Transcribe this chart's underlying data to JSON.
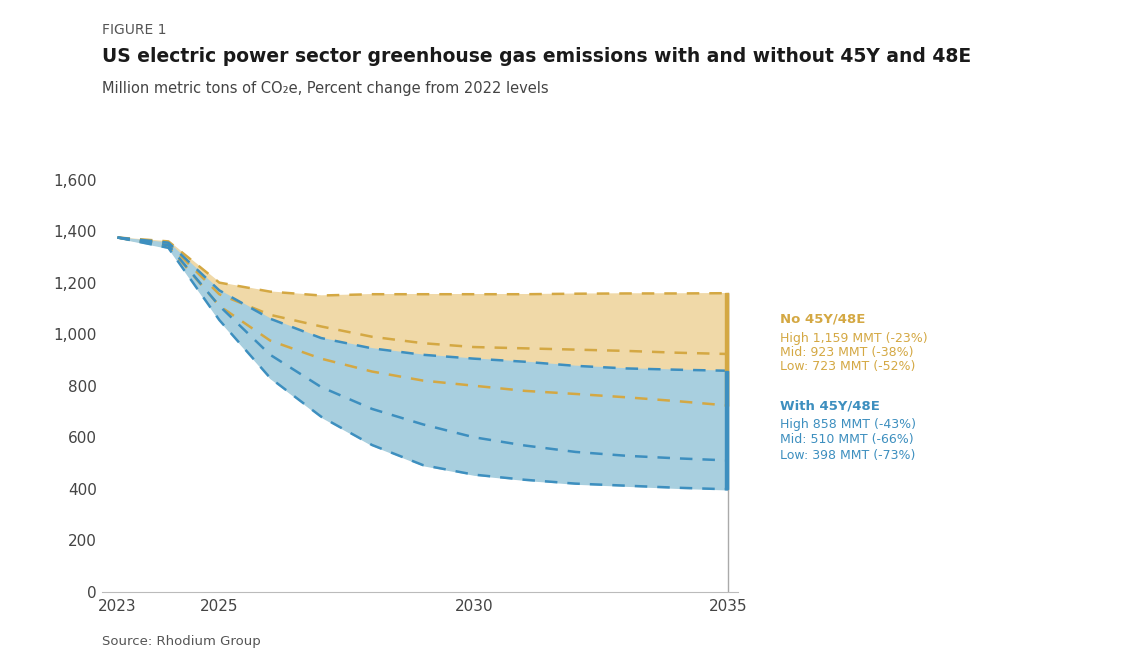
{
  "figure_label": "FIGURE 1",
  "title": "US electric power sector greenhouse gas emissions with and without 45Y and 48E",
  "subtitle": "Million metric tons of CO₂e, Percent change from 2022 levels",
  "source": "Source: Rhodium Group",
  "years": [
    2023,
    2024,
    2025,
    2026,
    2027,
    2028,
    2029,
    2030,
    2031,
    2032,
    2033,
    2034,
    2035
  ],
  "no_45y_high": [
    1375,
    1360,
    1200,
    1165,
    1150,
    1155,
    1155,
    1155,
    1155,
    1157,
    1158,
    1158,
    1159
  ],
  "no_45y_mid": [
    1375,
    1350,
    1155,
    1075,
    1030,
    990,
    965,
    950,
    945,
    940,
    935,
    928,
    923
  ],
  "no_45y_low": [
    1375,
    1340,
    1110,
    975,
    905,
    855,
    820,
    800,
    780,
    768,
    755,
    740,
    723
  ],
  "with_45y_high": [
    1375,
    1355,
    1170,
    1060,
    985,
    945,
    920,
    905,
    893,
    877,
    867,
    862,
    858
  ],
  "with_45y_mid": [
    1375,
    1345,
    1110,
    920,
    795,
    710,
    650,
    600,
    568,
    543,
    528,
    518,
    510
  ],
  "with_45y_low": [
    1375,
    1335,
    1055,
    830,
    680,
    570,
    492,
    455,
    435,
    420,
    412,
    404,
    398
  ],
  "color_no": "#D4A843",
  "color_with": "#3D8FBF",
  "color_no_fill": "#F0D9A8",
  "color_with_fill": "#A8CFDF",
  "ylim": [
    0,
    1600
  ],
  "yticks": [
    0,
    200,
    400,
    600,
    800,
    1000,
    1200,
    1400,
    1600
  ],
  "xticks": [
    2023,
    2025,
    2030,
    2035
  ],
  "legend_no_title": "No 45Y/48E",
  "legend_no_lines": [
    "High 1,159 MMT (-23%)",
    "Mid: 923 MMT (-38%)",
    "Low: 723 MMT (-52%)"
  ],
  "legend_with_title": "With 45Y/48E",
  "legend_with_lines": [
    "High 858 MMT (-43%)",
    "Mid: 510 MMT (-66%)",
    "Low: 398 MMT (-73%)"
  ],
  "bg_color": "#FFFFFF"
}
